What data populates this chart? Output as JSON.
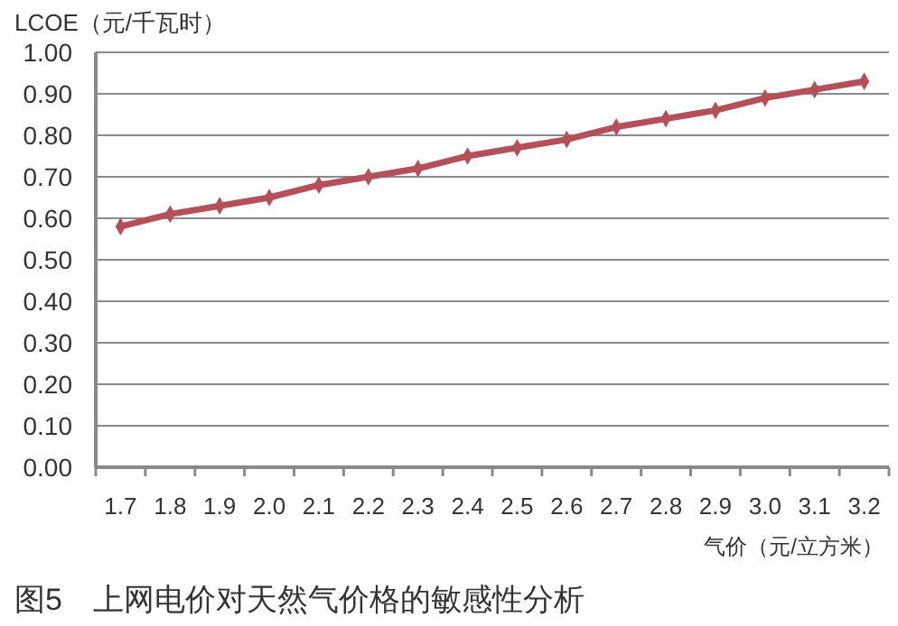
{
  "chart_data": {
    "type": "line",
    "title": "图5　上网电价对天然气价格的敏感性分析",
    "xlabel": "气价（元/立方米）",
    "ylabel": "LCOE（元/千瓦时）",
    "categories": [
      "1.7",
      "1.8",
      "1.9",
      "2.0",
      "2.1",
      "2.2",
      "2.3",
      "2.4",
      "2.5",
      "2.6",
      "2.7",
      "2.8",
      "2.9",
      "3.0",
      "3.1",
      "3.2"
    ],
    "series": [
      {
        "color": "#b5505a",
        "values": [
          0.58,
          0.61,
          0.63,
          0.65,
          0.68,
          0.7,
          0.72,
          0.75,
          0.77,
          0.79,
          0.82,
          0.84,
          0.86,
          0.89,
          0.91,
          0.93
        ]
      }
    ],
    "ylim": [
      0,
      1
    ],
    "yticks": [
      {
        "value": 0,
        "label": "0.00"
      },
      {
        "value": 0.1,
        "label": "0.10"
      },
      {
        "value": 0.2,
        "label": "0.20"
      },
      {
        "value": 0.3,
        "label": "0.30"
      },
      {
        "value": 0.4,
        "label": "0.40"
      },
      {
        "value": 0.5,
        "label": "0.50"
      },
      {
        "value": 0.6,
        "label": "0.60"
      },
      {
        "value": 0.7,
        "label": "0.70"
      },
      {
        "value": 0.8,
        "label": "0.80"
      },
      {
        "value": 0.9,
        "label": "0.90"
      },
      {
        "value": 1,
        "label": "1.00"
      }
    ],
    "grid": "y",
    "marker": "diamond",
    "line_style": "solid"
  }
}
